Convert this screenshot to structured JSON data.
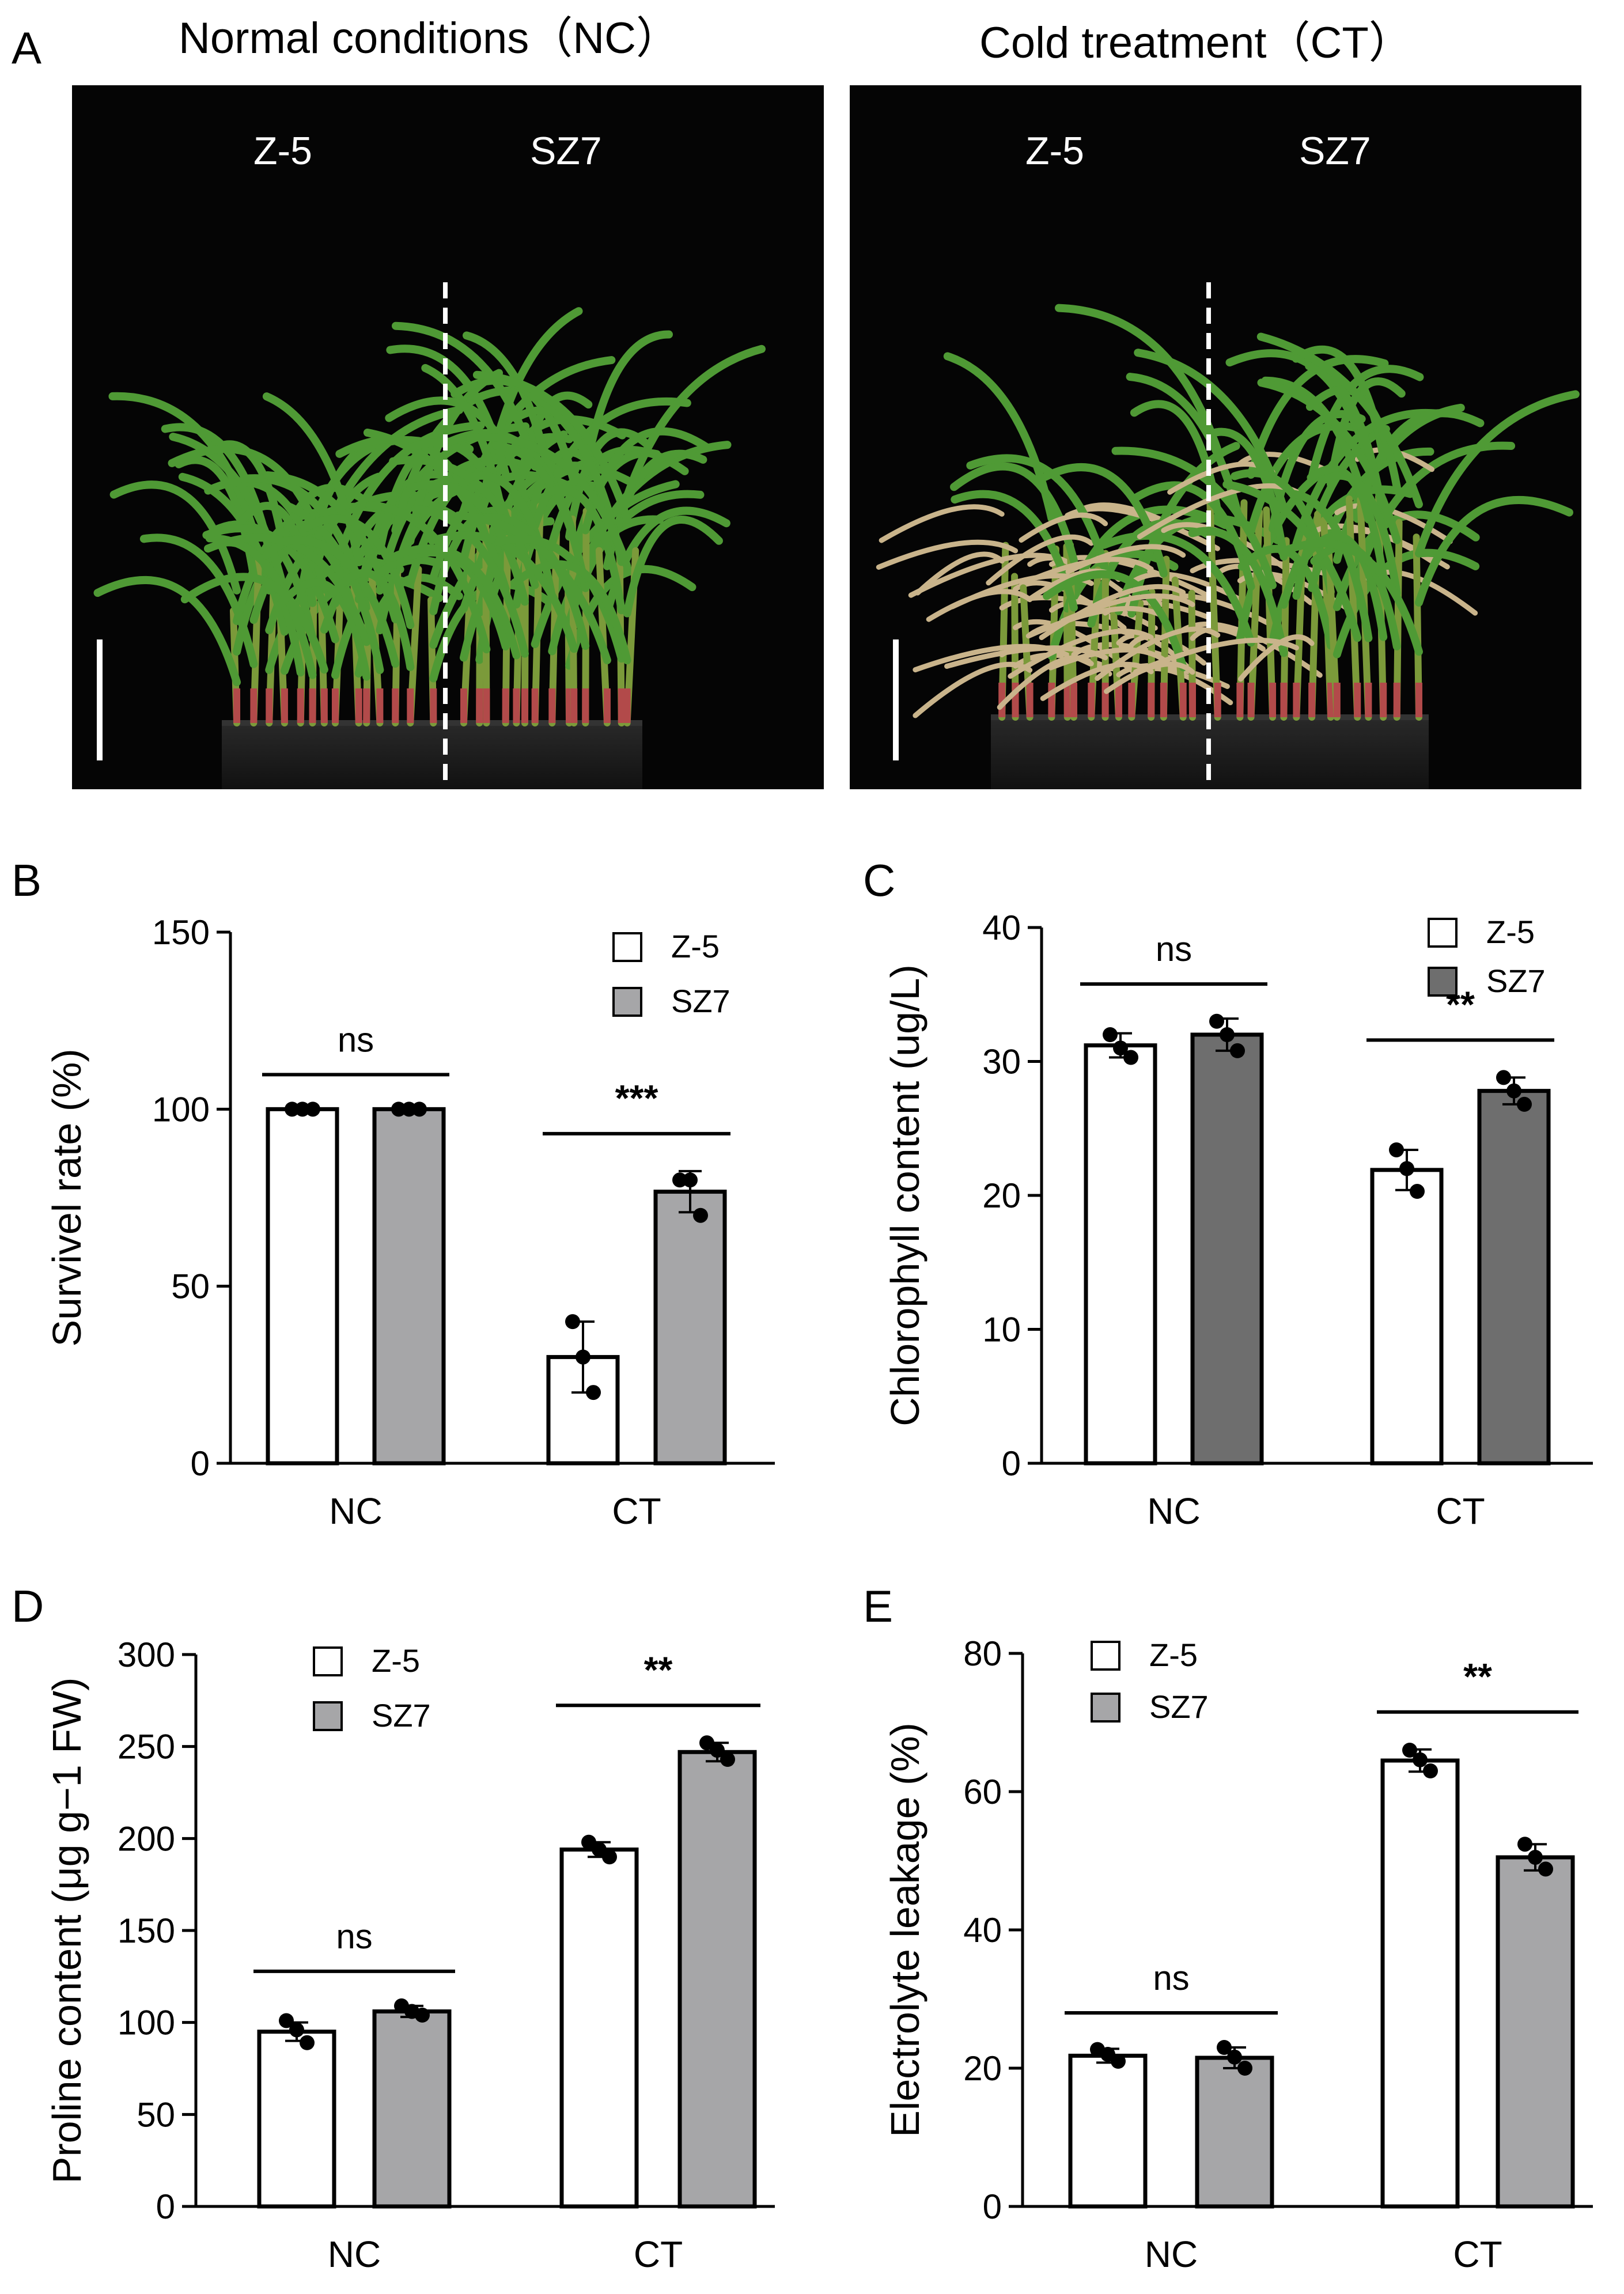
{
  "panels": {
    "A": {
      "label": "A",
      "photos": [
        {
          "title": "Normal conditions（NC）",
          "left_label": "Z-5",
          "right_label": "SZ7",
          "condition": "normal"
        },
        {
          "title": "Cold treatment（CT）",
          "left_label": "Z-5",
          "right_label": "SZ7",
          "condition": "cold"
        }
      ]
    }
  },
  "colors": {
    "z5": "#ffffff",
    "sz7_light": "#a6a6a8",
    "sz7_dark": "#6e6e6e",
    "plant_green": "#4f9a35",
    "plant_dry": "#c9b48b"
  },
  "chart_data": [
    {
      "panel": "B",
      "type": "bar",
      "ylabel": "Survivel rate (%)",
      "categories": [
        "NC",
        "CT"
      ],
      "ylim": [
        0,
        150
      ],
      "yticks": [
        0,
        50,
        100,
        150
      ],
      "series": [
        {
          "name": "Z-5",
          "values": [
            100,
            30
          ],
          "errors": [
            0,
            10
          ],
          "points": [
            [
              100,
              100,
              100
            ],
            [
              40,
              30,
              20
            ]
          ]
        },
        {
          "name": "SZ7",
          "values": [
            100,
            76.7
          ],
          "errors": [
            0,
            5.8
          ],
          "points": [
            [
              100,
              100,
              100
            ],
            [
              80,
              80,
              70
            ]
          ]
        }
      ],
      "significance": [
        {
          "label": "ns",
          "group": "NC"
        },
        {
          "label": "***",
          "group": "CT"
        }
      ],
      "legend": "top-right"
    },
    {
      "panel": "C",
      "type": "bar",
      "ylabel": "Chlorophyll content (ug/L)",
      "categories": [
        "NC",
        "CT"
      ],
      "ylim": [
        0,
        40
      ],
      "yticks": [
        0,
        10,
        20,
        30,
        40
      ],
      "series": [
        {
          "name": "Z-5",
          "values": [
            31.2,
            21.9
          ],
          "errors": [
            0.9,
            1.5
          ],
          "points": [
            [
              32,
              31,
              30.3
            ],
            [
              23.4,
              22,
              20.3
            ]
          ]
        },
        {
          "name": "SZ7",
          "values": [
            32.0,
            27.8
          ],
          "errors": [
            1.2,
            1.0
          ],
          "points": [
            [
              33,
              32,
              30.8
            ],
            [
              28.8,
              27.8,
              26.8
            ]
          ]
        }
      ],
      "significance": [
        {
          "label": "ns",
          "group": "NC"
        },
        {
          "label": "**",
          "group": "CT"
        }
      ],
      "legend": "top-right"
    },
    {
      "panel": "D",
      "type": "bar",
      "ylabel": "Proline content (μg g−1 FW)",
      "categories": [
        "NC",
        "CT"
      ],
      "ylim": [
        0,
        300
      ],
      "yticks": [
        0,
        50,
        100,
        150,
        200,
        250,
        300
      ],
      "series": [
        {
          "name": "Z-5",
          "values": [
            95,
            194
          ],
          "errors": [
            5,
            4
          ],
          "points": [
            [
              101,
              96,
              89
            ],
            [
              198,
              194,
              190
            ]
          ]
        },
        {
          "name": "SZ7",
          "values": [
            106,
            247
          ],
          "errors": [
            3,
            5
          ],
          "points": [
            [
              109,
              106,
              104
            ],
            [
              252,
              248,
              243
            ]
          ]
        }
      ],
      "significance": [
        {
          "label": "ns",
          "group": "NC"
        },
        {
          "label": "**",
          "group": "CT"
        }
      ],
      "legend": "top-left"
    },
    {
      "panel": "E",
      "type": "bar",
      "ylabel": "Electrolyte leakage (%)",
      "categories": [
        "NC",
        "CT"
      ],
      "ylim": [
        0,
        80
      ],
      "yticks": [
        0,
        20,
        40,
        60,
        80
      ],
      "series": [
        {
          "name": "Z-5",
          "values": [
            21.8,
            64.5
          ],
          "errors": [
            1.0,
            1.6
          ],
          "points": [
            [
              22.7,
              22,
              21
            ],
            [
              66,
              64.6,
              63
            ]
          ]
        },
        {
          "name": "SZ7",
          "values": [
            21.5,
            50.5
          ],
          "errors": [
            1.5,
            1.9
          ],
          "points": [
            [
              23,
              21.6,
              20
            ],
            [
              52.4,
              50.5,
              48.8
            ]
          ]
        }
      ],
      "significance": [
        {
          "label": "ns",
          "group": "NC"
        },
        {
          "label": "**",
          "group": "CT"
        }
      ],
      "legend": "top-left"
    }
  ]
}
